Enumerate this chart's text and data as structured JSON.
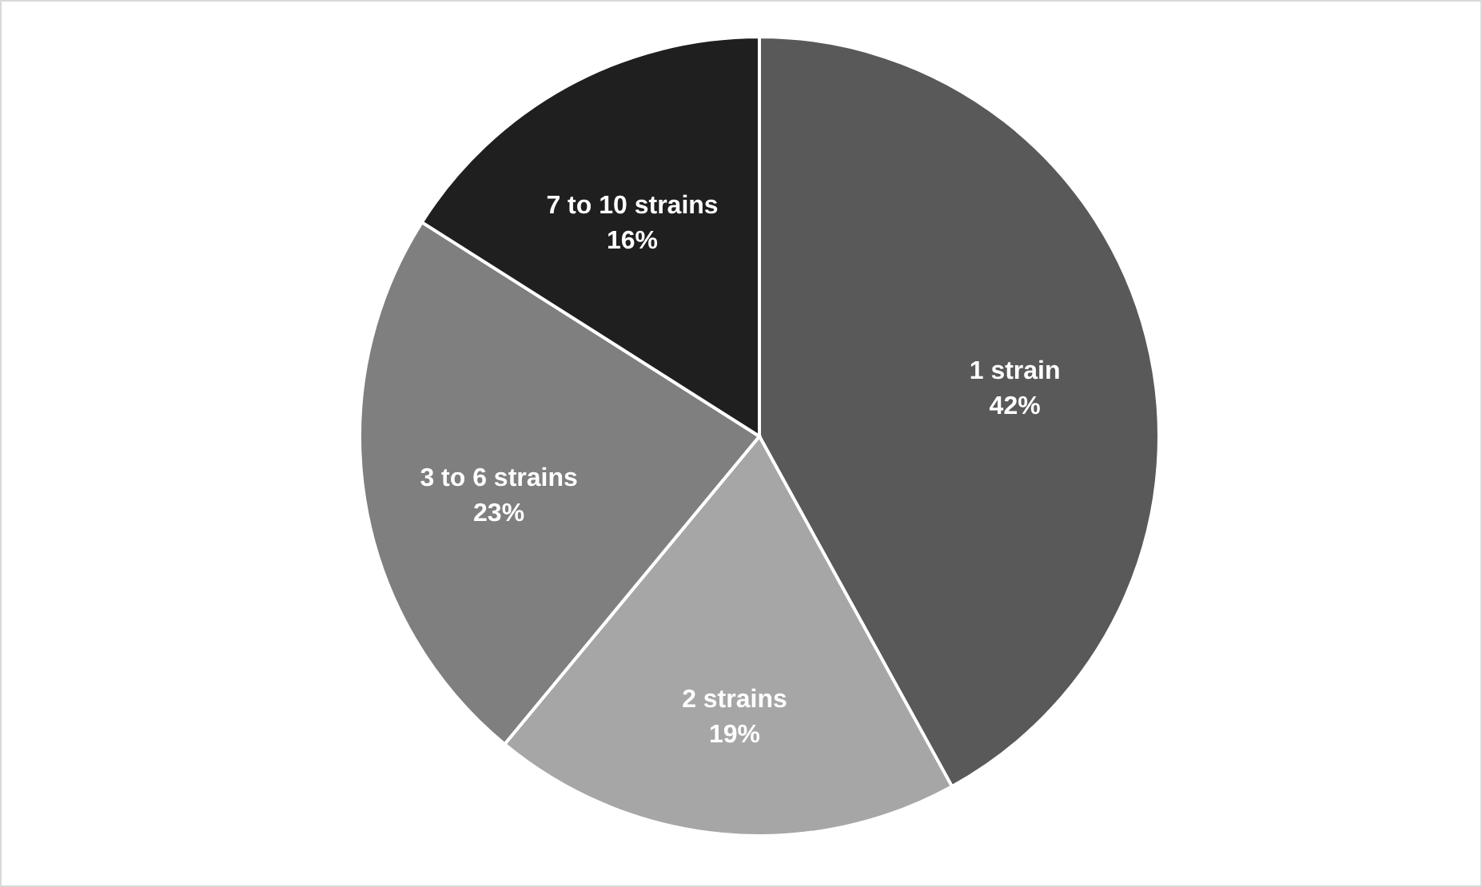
{
  "chart_data": {
    "type": "pie",
    "categories": [
      "1 strain",
      "2 strains",
      "3 to 6 strains",
      "7 to 10 strains"
    ],
    "values": [
      42,
      19,
      23,
      16
    ],
    "value_labels": [
      "42%",
      "19%",
      "23%",
      "16%"
    ],
    "colors": [
      "#595959",
      "#a6a6a6",
      "#7f7f7f",
      "#1f1f1f"
    ]
  }
}
